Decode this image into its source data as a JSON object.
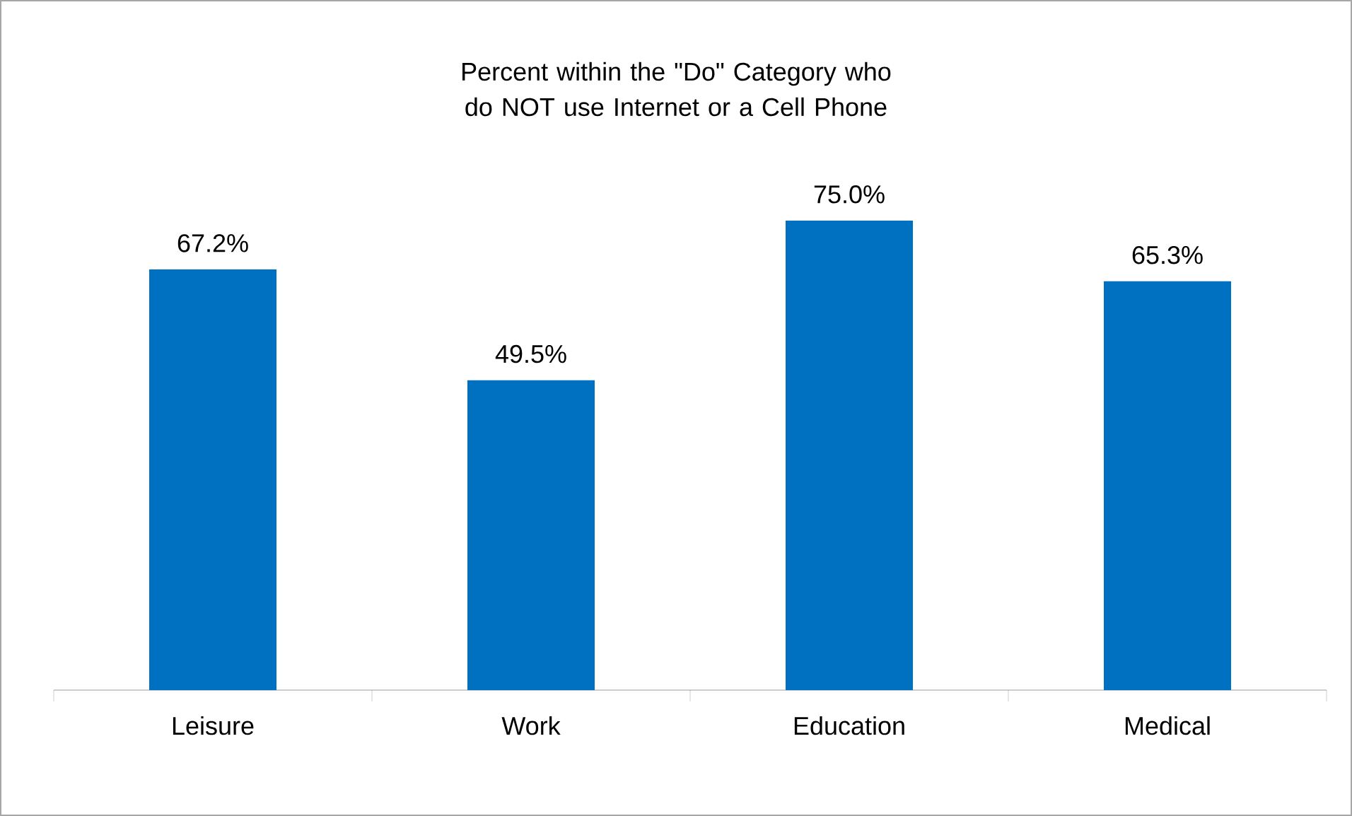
{
  "chart_data": {
    "type": "bar",
    "title": "Percent within the \"Do\" Category who do NOT use Internet or a Cell Phone",
    "categories": [
      "Leisure",
      "Work",
      "Education",
      "Medical"
    ],
    "values": [
      67.2,
      49.5,
      75.0,
      65.3
    ],
    "value_labels": [
      "67.2%",
      "49.5%",
      "75.0%",
      "65.3%"
    ],
    "color": "#0070c0"
  }
}
